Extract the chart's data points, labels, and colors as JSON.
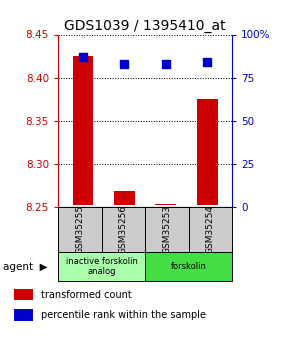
{
  "title": "GDS1039 / 1395410_at",
  "samples": [
    "GSM35255",
    "GSM35256",
    "GSM35253",
    "GSM35254"
  ],
  "red_values": [
    8.425,
    8.268,
    8.254,
    8.375
  ],
  "blue_values": [
    87,
    83,
    83,
    84
  ],
  "ylim": [
    8.25,
    8.45
  ],
  "yticks": [
    8.25,
    8.3,
    8.35,
    8.4,
    8.45
  ],
  "right_yticks": [
    0,
    25,
    50,
    75,
    100
  ],
  "right_ylim": [
    0,
    100
  ],
  "baseline": 8.252,
  "groups": [
    {
      "label": "inactive forskolin\nanalog",
      "start": 0,
      "end": 2,
      "color": "#aaffaa"
    },
    {
      "label": "forskolin",
      "start": 2,
      "end": 4,
      "color": "#44dd44"
    }
  ],
  "bar_color": "#cc0000",
  "dot_color": "#0000cc",
  "left_axis_color": "#cc0000",
  "right_axis_color": "#0000cc",
  "title_fontsize": 10,
  "tick_fontsize": 7.5,
  "bar_width": 0.5,
  "dot_size": 35,
  "legend_red": "transformed count",
  "legend_blue": "percentile rank within the sample"
}
